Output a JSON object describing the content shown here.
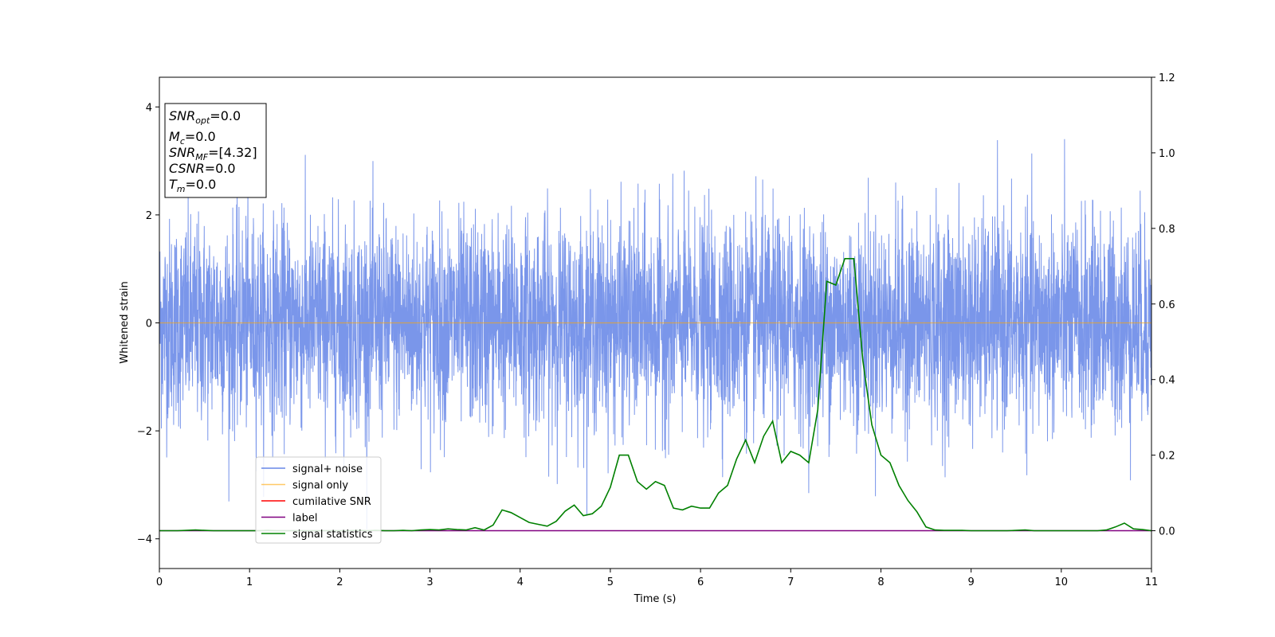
{
  "chart_data": {
    "type": "line",
    "title": "",
    "xlabel": "Time (s)",
    "ylabel": "Whitened strain",
    "y2label": "",
    "xlim": [
      0,
      11
    ],
    "ylim": [
      -4.55,
      4.55
    ],
    "y2lim": [
      -0.1,
      1.2
    ],
    "x_ticks": [
      0,
      1,
      2,
      3,
      4,
      5,
      6,
      7,
      8,
      9,
      10,
      11
    ],
    "y_ticks": [
      -4,
      -2,
      0,
      2,
      4
    ],
    "y2_ticks": [
      0.0,
      0.2,
      0.4,
      0.6,
      0.8,
      1.0,
      1.2
    ],
    "y_tick_labels": [
      "−4",
      "−2",
      "0",
      "2",
      "4"
    ],
    "y2_tick_labels": [
      "0.0",
      "0.2",
      "0.4",
      "0.6",
      "0.8",
      "1.0",
      "1.2"
    ],
    "grid": false,
    "legend_position": "lower-left",
    "series": [
      {
        "name": "signal+ noise",
        "color": "#4169e1",
        "axis": "left",
        "style": "noise",
        "amplitude_sd": 0.95,
        "peak_max": 4.1,
        "peak_min": -4.0,
        "x_range": [
          0,
          11
        ]
      },
      {
        "name": "signal only",
        "color": "#ffa500",
        "axis": "left",
        "x": [
          0,
          11
        ],
        "y": [
          0,
          0
        ]
      },
      {
        "name": "cumilative SNR",
        "color": "#ff0000",
        "axis": "right",
        "x": [],
        "y": []
      },
      {
        "name": "label",
        "color": "#800080",
        "axis": "right",
        "x": [
          0,
          11
        ],
        "y": [
          0,
          0
        ]
      },
      {
        "name": "signal statistics",
        "color": "#008000",
        "axis": "right",
        "x": [
          0,
          0.1,
          0.2,
          0.3,
          0.4,
          0.5,
          0.6,
          0.7,
          0.8,
          0.9,
          1.0,
          1.1,
          1.2,
          1.3,
          1.4,
          1.5,
          1.6,
          1.7,
          1.8,
          1.9,
          2.0,
          2.1,
          2.2,
          2.3,
          2.4,
          2.5,
          2.6,
          2.7,
          2.8,
          2.9,
          3.0,
          3.1,
          3.2,
          3.3,
          3.4,
          3.5,
          3.6,
          3.7,
          3.8,
          3.9,
          4.0,
          4.1,
          4.2,
          4.3,
          4.4,
          4.5,
          4.6,
          4.7,
          4.8,
          4.9,
          5.0,
          5.1,
          5.2,
          5.3,
          5.4,
          5.5,
          5.6,
          5.7,
          5.8,
          5.9,
          6.0,
          6.1,
          6.2,
          6.3,
          6.4,
          6.5,
          6.6,
          6.7,
          6.8,
          6.9,
          7.0,
          7.1,
          7.2,
          7.3,
          7.4,
          7.5,
          7.6,
          7.7,
          7.8,
          7.9,
          8.0,
          8.1,
          8.2,
          8.3,
          8.4,
          8.5,
          8.6,
          8.7,
          8.8,
          8.9,
          9.0,
          9.1,
          9.2,
          9.3,
          9.4,
          9.5,
          9.6,
          9.7,
          9.8,
          9.9,
          10.0,
          10.1,
          10.2,
          10.3,
          10.4,
          10.5,
          10.6,
          10.7,
          10.8,
          10.9,
          11.0
        ],
        "y": [
          0.0,
          0.0,
          0.0,
          0.001,
          0.002,
          0.001,
          0.0,
          0.0,
          0.0,
          0.0,
          0.0,
          0.0,
          0.001,
          0.0,
          0.0,
          0.0,
          0.0,
          0.0,
          0.0,
          0.0,
          0.0,
          0.0,
          0.001,
          0.0,
          0.001,
          0.0,
          0.0,
          0.001,
          0.0,
          0.002,
          0.003,
          0.002,
          0.005,
          0.003,
          0.002,
          0.008,
          0.002,
          0.015,
          0.055,
          0.048,
          0.035,
          0.022,
          0.017,
          0.012,
          0.025,
          0.052,
          0.068,
          0.04,
          0.045,
          0.065,
          0.115,
          0.2,
          0.2,
          0.13,
          0.11,
          0.13,
          0.12,
          0.06,
          0.055,
          0.065,
          0.06,
          0.06,
          0.1,
          0.12,
          0.19,
          0.24,
          0.18,
          0.25,
          0.29,
          0.18,
          0.21,
          0.2,
          0.18,
          0.32,
          0.66,
          0.65,
          0.72,
          0.72,
          0.45,
          0.28,
          0.2,
          0.18,
          0.12,
          0.08,
          0.05,
          0.01,
          0.002,
          0.001,
          0.001,
          0.001,
          0.0,
          0.0,
          0.0,
          0.0,
          0.0,
          0.001,
          0.002,
          0.0,
          0.0,
          0.0,
          0.0,
          0.0,
          0.0,
          0.0,
          0.0,
          0.002,
          0.01,
          0.02,
          0.005,
          0.003,
          0.0
        ]
      }
    ],
    "info_box": [
      {
        "main": "SNR",
        "sub": "opt",
        "value": "=0.0"
      },
      {
        "main": "M",
        "sub": "c",
        "value": "=0.0"
      },
      {
        "main": "SNR",
        "sub": "MF",
        "value": "=[4.32]"
      },
      {
        "main": "CSNR",
        "sub": "",
        "value": "=0.0"
      },
      {
        "main": "T",
        "sub": "m",
        "value": "=0.0"
      }
    ]
  }
}
